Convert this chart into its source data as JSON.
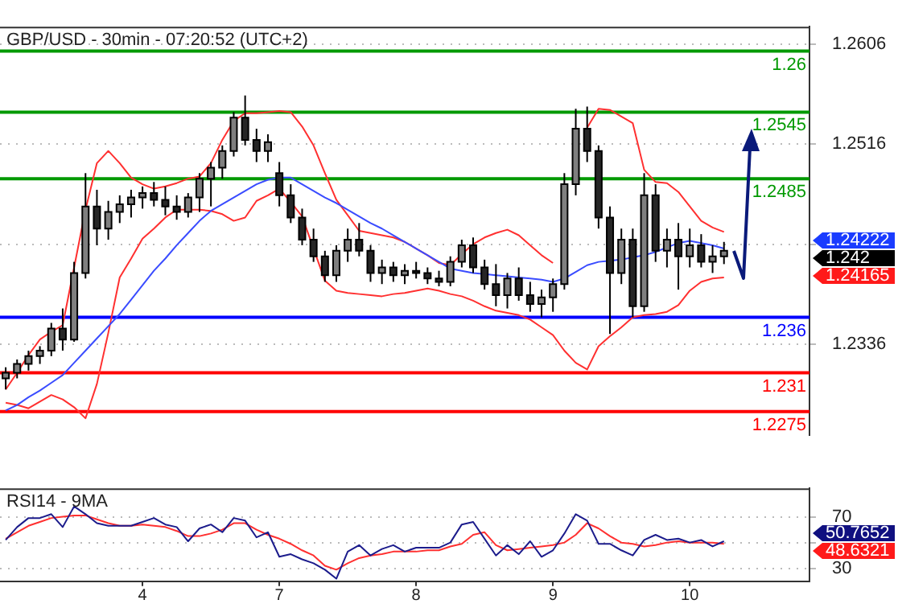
{
  "chart_data": [
    {
      "type": "candlestick",
      "title": "GBP/USD - 30min - 07:20:52 (UTC+2)",
      "colors": [
        "#7f7f7f",
        "#7f7f7f",
        "#7f7f7f",
        "#7f7f7f",
        "#7f7f7f",
        "#262626",
        "#7f7f7f",
        "#7f7f7f",
        "#262626",
        "#7f7f7f",
        "#7f7f7f",
        "#7f7f7f",
        "#7f7f7f",
        "#262626",
        "#262626",
        "#262626",
        "#7f7f7f",
        "#7f7f7f",
        "#7f7f7f",
        "#7f7f7f",
        "#7f7f7f",
        "#262626",
        "#262626",
        "#7f7f7f",
        "#262626",
        "#262626",
        "#262626",
        "#262626",
        "#262626",
        "#7f7f7f",
        "#7f7f7f",
        "#262626",
        "#262626",
        "#7f7f7f",
        "#262626",
        "#7f7f7f",
        "#262626",
        "#262626",
        "#262626",
        "#7f7f7f",
        "#7f7f7f",
        "#262626",
        "#262626",
        "#262626",
        "#7f7f7f",
        "#262626",
        "#262626",
        "#7f7f7f",
        "#7f7f7f",
        "#7f7f7f",
        "#7f7f7f",
        "#262626",
        "#262626",
        "#262626",
        "#7f7f7f",
        "#262626",
        "#7f7f7f",
        "#262626",
        "#7f7f7f",
        "#262626",
        "#7f7f7f",
        "#262626",
        "#7f7f7f",
        "#7f7f7f",
        null,
        null,
        null,
        null,
        null,
        null,
        null
      ],
      "categories": [
        null,
        null,
        null,
        null,
        null,
        null,
        null,
        null,
        null,
        null,
        null,
        null,
        "4",
        null,
        null,
        null,
        null,
        null,
        null,
        null,
        null,
        null,
        null,
        null,
        "7",
        null,
        null,
        null,
        null,
        null,
        null,
        null,
        null,
        null,
        null,
        null,
        "8",
        null,
        null,
        null,
        null,
        null,
        null,
        null,
        null,
        null,
        null,
        null,
        "9",
        null,
        null,
        null,
        null,
        null,
        null,
        null,
        null,
        null,
        null,
        null,
        "10",
        null,
        null,
        null,
        null,
        null,
        null,
        null,
        null,
        null,
        null
      ],
      "ohlc": [
        [
          1.2305,
          1.2315,
          1.2295,
          1.231
        ],
        [
          1.231,
          1.2322,
          1.2305,
          1.2318
        ],
        [
          1.2318,
          1.233,
          1.2312,
          1.2325
        ],
        [
          1.2325,
          1.2334,
          1.2318,
          1.233
        ],
        [
          1.233,
          1.2355,
          1.2325,
          1.235
        ],
        [
          1.235,
          1.2368,
          1.233,
          1.234
        ],
        [
          1.234,
          1.241,
          1.2338,
          1.24
        ],
        [
          1.24,
          1.249,
          1.2395,
          1.246
        ],
        [
          1.246,
          1.2475,
          1.2425,
          1.244
        ],
        [
          1.244,
          1.2465,
          1.243,
          1.2455
        ],
        [
          1.2455,
          1.247,
          1.2445,
          1.2462
        ],
        [
          1.2462,
          1.2475,
          1.245,
          1.2468
        ],
        [
          1.2468,
          1.2478,
          1.2458,
          1.2472
        ],
        [
          1.2472,
          1.2482,
          1.246,
          1.2466
        ],
        [
          1.2466,
          1.2478,
          1.2452,
          1.246
        ],
        [
          1.246,
          1.247,
          1.2448,
          1.2455
        ],
        [
          1.2455,
          1.2472,
          1.245,
          1.2468
        ],
        [
          1.2468,
          1.249,
          1.2455,
          1.2485
        ],
        [
          1.2485,
          1.25,
          1.246,
          1.2495
        ],
        [
          1.2495,
          1.2515,
          1.2485,
          1.251
        ],
        [
          1.251,
          1.2545,
          1.2505,
          1.254
        ],
        [
          1.254,
          1.256,
          1.2515,
          1.252
        ],
        [
          1.252,
          1.253,
          1.25,
          1.251
        ],
        [
          1.251,
          1.2525,
          1.25,
          1.2518
        ],
        [
          1.249,
          1.25,
          1.246,
          1.247
        ],
        [
          1.247,
          1.248,
          1.2445,
          1.245
        ],
        [
          1.245,
          1.2458,
          1.2425,
          1.243
        ],
        [
          1.243,
          1.244,
          1.241,
          1.2415
        ],
        [
          1.2415,
          1.242,
          1.2392,
          1.2398
        ],
        [
          1.2398,
          1.2425,
          1.2392,
          1.242
        ],
        [
          1.242,
          1.244,
          1.241,
          1.243
        ],
        [
          1.243,
          1.2445,
          1.2415,
          1.242
        ],
        [
          1.242,
          1.2425,
          1.2392,
          1.24
        ],
        [
          1.24,
          1.2412,
          1.239,
          1.2405
        ],
        [
          1.2405,
          1.241,
          1.2392,
          1.2398
        ],
        [
          1.2398,
          1.2408,
          1.239,
          1.2402
        ],
        [
          1.2402,
          1.241,
          1.2395,
          1.24
        ],
        [
          1.24,
          1.2405,
          1.239,
          1.2395
        ],
        [
          1.2395,
          1.2402,
          1.2388,
          1.2392
        ],
        [
          1.2392,
          1.2415,
          1.2388,
          1.241
        ],
        [
          1.241,
          1.243,
          1.2405,
          1.2425
        ],
        [
          1.2425,
          1.2432,
          1.24,
          1.2405
        ],
        [
          1.2405,
          1.2412,
          1.2385,
          1.239
        ],
        [
          1.239,
          1.2408,
          1.237,
          1.238
        ],
        [
          1.238,
          1.24,
          1.2368,
          1.2395
        ],
        [
          1.2395,
          1.2405,
          1.2375,
          1.238
        ],
        [
          1.238,
          1.2392,
          1.2365,
          1.2372
        ],
        [
          1.2372,
          1.2385,
          1.236,
          1.2378
        ],
        [
          1.2378,
          1.2395,
          1.2365,
          1.239
        ],
        [
          1.239,
          1.249,
          1.2385,
          1.248
        ],
        [
          1.248,
          1.2548,
          1.247,
          1.253
        ],
        [
          1.253,
          1.255,
          1.25,
          1.251
        ],
        [
          1.251,
          1.2515,
          1.244,
          1.245
        ],
        [
          1.245,
          1.246,
          1.2345,
          1.24
        ],
        [
          1.24,
          1.244,
          1.239,
          1.243
        ],
        [
          1.243,
          1.244,
          1.236,
          1.237
        ],
        [
          1.237,
          1.249,
          1.2365,
          1.247
        ],
        [
          1.247,
          1.248,
          1.241,
          1.242
        ],
        [
          1.242,
          1.244,
          1.2405,
          1.243
        ],
        [
          1.243,
          1.2445,
          1.2385,
          1.2415
        ],
        [
          1.2415,
          1.244,
          1.2405,
          1.2425
        ],
        [
          1.2425,
          1.2435,
          1.2405,
          1.241
        ],
        [
          1.241,
          1.2425,
          1.24,
          1.2415
        ],
        [
          1.2415,
          1.2428,
          1.2408,
          1.242
        ],
        null,
        null,
        null,
        null,
        null,
        null,
        null
      ],
      "series": [
        {
          "type": "line",
          "color": "#3a4cff",
          "values": [
            1.2276,
            1.2281,
            1.2288,
            1.2294,
            1.2301,
            1.2308,
            1.2319,
            1.233,
            1.2341,
            1.2352,
            1.2363,
            1.2376,
            1.2389,
            1.2402,
            1.2413,
            1.2425,
            1.2436,
            1.2447,
            1.2456,
            1.2462,
            1.2468,
            1.2474,
            1.248,
            1.2484,
            1.2486,
            1.2486,
            1.248,
            1.2474,
            1.2468,
            1.2463,
            1.2457,
            1.2451,
            1.2445,
            1.244,
            1.2434,
            1.2428,
            1.2422,
            1.2416,
            1.241,
            1.2404,
            1.2402,
            1.24,
            1.2399,
            1.2398,
            1.2397,
            1.2396,
            1.2395,
            1.2394,
            1.2392,
            1.2395,
            1.2401,
            1.2407,
            1.241,
            1.2411,
            1.2412,
            1.2414,
            1.2416,
            1.2419,
            1.2423,
            1.2427,
            1.2429,
            1.2427,
            1.2425,
            1.2422,
            null,
            null,
            null,
            null,
            null,
            null,
            null
          ]
        },
        {
          "type": "line",
          "color": "#ff3030",
          "values": [
            1.2295,
            1.231,
            1.2326,
            1.234,
            1.2347,
            1.2353,
            1.2405,
            1.2457,
            1.2499,
            1.251,
            1.2499,
            1.2486,
            1.248,
            1.2476,
            1.2478,
            1.2481,
            1.2485,
            1.2487,
            1.2499,
            1.252,
            1.2537,
            1.2544,
            1.2544,
            1.2545,
            1.2546,
            1.2545,
            1.2532,
            1.2515,
            1.249,
            1.2466,
            1.2452,
            1.2438,
            1.2436,
            1.2434,
            1.2432,
            1.2428,
            1.2422,
            1.2416,
            1.2409,
            1.2407,
            1.2417,
            1.2426,
            1.2432,
            1.2436,
            1.2439,
            1.2434,
            1.2425,
            1.2416,
            1.2409,
            null,
            null,
            1.2531,
            1.2548,
            1.2547,
            1.2541,
            1.2535,
            1.2493,
            1.2482,
            1.2481,
            1.2473,
            1.246,
            1.2447,
            1.2441,
            1.2437,
            null,
            null,
            null,
            null,
            null,
            null,
            null
          ]
        },
        {
          "type": "line",
          "color": "#ff3030",
          "values": [
            1.2283,
            1.2281,
            1.2278,
            1.2284,
            1.229,
            1.2286,
            1.2279,
            1.2269,
            1.23,
            1.2346,
            1.2396,
            1.2413,
            1.2431,
            1.244,
            1.245,
            1.2457,
            1.2457,
            1.2457,
            1.2456,
            1.2453,
            1.2447,
            1.245,
            1.2465,
            1.247,
            1.2476,
            1.2464,
            1.2451,
            1.2422,
            1.2393,
            1.2384,
            1.2382,
            1.2381,
            1.238,
            1.2379,
            1.2381,
            1.2382,
            1.2384,
            1.2386,
            1.2384,
            1.2381,
            1.2379,
            1.2375,
            1.237,
            1.2366,
            1.2364,
            1.2362,
            1.2358,
            1.2351,
            1.2344,
            1.233,
            1.2319,
            1.2313,
            1.2334,
            1.2343,
            1.2351,
            1.236,
            1.2362,
            1.2363,
            1.2365,
            1.2371,
            1.2384,
            1.2392,
            1.2395,
            1.2396,
            null,
            null,
            null,
            null,
            null,
            null,
            null
          ]
        }
      ],
      "ylim": [
        1.2254,
        1.2622
      ],
      "yticks": [
        1.2606,
        1.2516,
        {
          "value": 1.2426,
          "label": null
        },
        1.2336
      ],
      "tick_labels": "y",
      "grid": "y",
      "marker": "none",
      "legend": false,
      "ref_lines": [
        {
          "axis": "y",
          "value": 1.26,
          "label": "1.26",
          "color": "#009900"
        },
        {
          "axis": "y",
          "value": 1.2545,
          "label": "1.2545",
          "color": "#009900"
        },
        {
          "axis": "y",
          "value": 1.2485,
          "label": "1.2485",
          "color": "#009900"
        },
        {
          "axis": "y",
          "value": 1.236,
          "label": "1.236",
          "color": "#0000ff"
        },
        {
          "axis": "y",
          "value": 1.231,
          "label": "1.231",
          "color": "#ff0000"
        },
        {
          "axis": "y",
          "value": 1.2275,
          "label": "1.2275",
          "color": "#ff0000"
        }
      ],
      "annotations": [
        "1.24222",
        "1.242",
        "1.24165"
      ]
    },
    {
      "type": "line",
      "title": "RSI14 - 9MA",
      "categories": [
        null,
        null,
        null,
        null,
        null,
        null,
        null,
        null,
        null,
        null,
        null,
        null,
        "4",
        null,
        null,
        null,
        null,
        null,
        null,
        null,
        null,
        null,
        null,
        null,
        "7",
        null,
        null,
        null,
        null,
        null,
        null,
        null,
        null,
        null,
        null,
        null,
        "8",
        null,
        null,
        null,
        null,
        null,
        null,
        null,
        null,
        null,
        null,
        null,
        "9",
        null,
        null,
        null,
        null,
        null,
        null,
        null,
        null,
        null,
        null,
        null,
        "10",
        null,
        null,
        null,
        null,
        null,
        null,
        null,
        null,
        null,
        null
      ],
      "series": [
        {
          "type": "line",
          "color": "#1c1c8c",
          "values": [
            52,
            62,
            69,
            69,
            72,
            62,
            78,
            72,
            65,
            63,
            63,
            63,
            66,
            69,
            64,
            62,
            51,
            61,
            64,
            58,
            69,
            67,
            54,
            58,
            39,
            41,
            37,
            34,
            29,
            22,
            43,
            48,
            40,
            45,
            48,
            43,
            46,
            46,
            46,
            50,
            64,
            66,
            53,
            40,
            48,
            41,
            51,
            39,
            44,
            57,
            72,
            67,
            49,
            49,
            44,
            40,
            52,
            56,
            52,
            53,
            50,
            52,
            47,
            51,
            null,
            null,
            null,
            null,
            null,
            null,
            null
          ]
        },
        {
          "type": "line",
          "color": "#ff3030",
          "values": [
            53,
            58,
            63,
            66,
            69,
            70,
            71,
            71,
            68,
            65,
            63,
            63,
            64,
            63,
            62,
            59,
            55,
            55,
            57,
            60,
            65,
            65,
            60,
            56,
            53,
            49,
            44,
            40,
            32,
            29,
            34,
            38,
            40,
            41,
            43,
            43,
            43,
            44,
            44,
            47,
            49,
            56,
            58,
            48,
            44,
            45,
            46,
            47,
            48,
            50,
            56,
            65,
            61,
            55,
            50,
            49,
            47,
            48,
            50,
            51,
            50,
            50,
            50,
            49,
            null,
            null,
            null,
            null,
            null,
            null,
            null
          ]
        }
      ],
      "ylim": [
        20,
        92
      ],
      "yticks": [
        30,
        {
          "value": 50,
          "label": null
        },
        70
      ],
      "grid": "y",
      "marker": "none",
      "legend": false,
      "annotations": [
        "50.7652",
        "48.6321"
      ]
    }
  ]
}
